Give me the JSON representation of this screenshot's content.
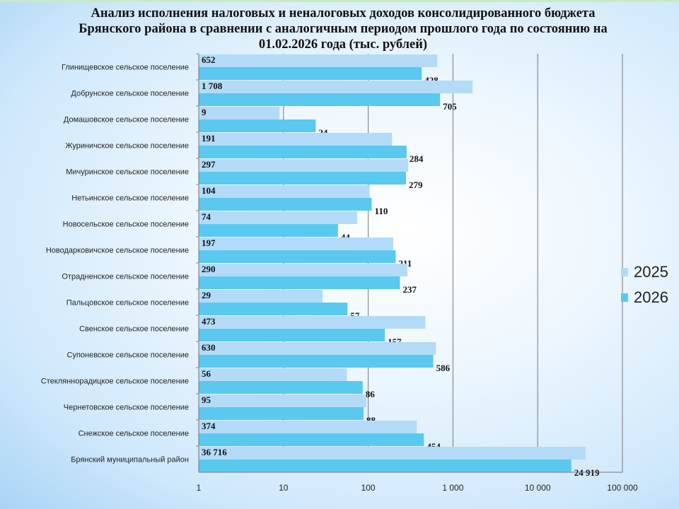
{
  "chart_data": {
    "type": "bar",
    "orientation": "horizontal",
    "title": "Анализ исполнения налоговых и неналоговых доходов консолидированного бюджета Брянского района в сравнении с аналогичным периодом прошлого года по состоянию на 01.02.2026 года  (тыс. рублей)",
    "categories": [
      "Глинищевское сельское поселение",
      "Добрунское сельское поселение",
      "Домашовское сельское поселение",
      "Журиничское сельское поселение",
      "Мичуринское сельское поселение",
      "Нетьинское сельское поселение",
      "Новосельское сельское поселение",
      "Новодарковичское сельское поселение",
      "Отрадненское сельское поселение",
      "Пальцовское сельское поселение",
      "Свенское сельское поселение",
      "Супоневское сельское поселение",
      "Стекляннорадицкое сельское поселение",
      "Чернетовское сельское поселение",
      "Снежское сельское поселение",
      "Брянский муниципальный район"
    ],
    "series": [
      {
        "name": "2025",
        "color": "#b3dbf7",
        "values": [
          652,
          1708,
          9,
          191,
          297,
          104,
          74,
          197,
          290,
          29,
          473,
          630,
          56,
          95,
          374,
          36716
        ],
        "labels": [
          "652",
          "1 708",
          "9",
          "191",
          "297",
          "104",
          "74",
          "197",
          "290",
          "29",
          "473",
          "630",
          "56",
          "95",
          "374",
          "36 716"
        ]
      },
      {
        "name": "2026",
        "color": "#5bc8f0",
        "values": [
          428,
          705,
          24,
          284,
          279,
          110,
          44,
          211,
          237,
          57,
          157,
          586,
          86,
          88,
          454,
          24919
        ],
        "labels": [
          "428",
          "705",
          "24",
          "284",
          "279",
          "110",
          "44",
          "211",
          "237",
          "57",
          "157",
          "586",
          "86",
          "88",
          "454",
          "24 919"
        ]
      }
    ],
    "x_scale": "log",
    "xlim": [
      1,
      100000
    ],
    "x_ticks": [
      1,
      10,
      100,
      1000,
      10000,
      100000
    ],
    "x_tick_labels": [
      "1",
      "10",
      "100",
      "1 000",
      "10 000",
      "100 000"
    ],
    "grid": "vertical major gridlines",
    "legend_position": "right"
  }
}
